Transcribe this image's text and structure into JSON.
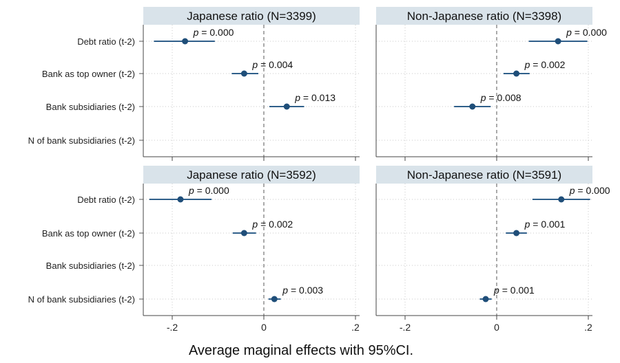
{
  "chart_data": {
    "type": "scatter",
    "description_style": "coefficient plot (dot with 95% CI bar) in 4 panels",
    "xlabel": "Average maginal effects with 95%CI.",
    "xlim": [
      -0.26,
      0.22
    ],
    "x_ticks": [
      -0.2,
      0,
      0.2
    ],
    "x_tick_labels": [
      "-.2",
      "0",
      ".2"
    ],
    "categories": [
      "Debt ratio (t-2)",
      "Bank as top owner (t-2)",
      "Bank subsidiaries (t-2)",
      "N of bank subsidiaries (t-2)"
    ],
    "colors": {
      "marker": "#1f4e79",
      "ci": "#2f5f8a",
      "header_bg": "#d9e3ea",
      "zero_line": "#555555",
      "grid": "#c8c8c8"
    },
    "panels": [
      {
        "title": "Japanese ratio (N=3399)",
        "points": [
          {
            "category": "Debt ratio (t-2)",
            "estimate": -0.172,
            "ci": [
              -0.24,
              -0.107
            ],
            "p_label": "= 0.000"
          },
          {
            "category": "Bank as top owner (t-2)",
            "estimate": -0.043,
            "ci": [
              -0.07,
              -0.012
            ],
            "p_label": "= 0.004"
          },
          {
            "category": "Bank subsidiaries (t-2)",
            "estimate": 0.05,
            "ci": [
              0.012,
              0.088
            ],
            "p_label": "= 0.013"
          }
        ]
      },
      {
        "title": "Non-Japanese ratio (N=3398)",
        "points": [
          {
            "category": "Debt ratio (t-2)",
            "estimate": 0.134,
            "ci": [
              0.07,
              0.198
            ],
            "p_label": "= 0.000"
          },
          {
            "category": "Bank as top owner (t-2)",
            "estimate": 0.043,
            "ci": [
              0.015,
              0.072
            ],
            "p_label": "= 0.002"
          },
          {
            "category": "Bank subsidiaries (t-2)",
            "estimate": -0.053,
            "ci": [
              -0.093,
              -0.013
            ],
            "p_label": "= 0.008"
          }
        ]
      },
      {
        "title": "Japanese ratio (N=3592)",
        "points": [
          {
            "category": "Debt ratio (t-2)",
            "estimate": -0.182,
            "ci": [
              -0.25,
              -0.114
            ],
            "p_label": "= 0.000"
          },
          {
            "category": "Bank as top owner (t-2)",
            "estimate": -0.043,
            "ci": [
              -0.068,
              -0.017
            ],
            "p_label": "= 0.002"
          },
          {
            "category": "N of bank subsidiaries (t-2)",
            "estimate": 0.023,
            "ci": [
              0.01,
              0.037
            ],
            "p_label": "= 0.003"
          }
        ]
      },
      {
        "title": "Non-Japanese ratio (N=3591)",
        "points": [
          {
            "category": "Debt ratio (t-2)",
            "estimate": 0.141,
            "ci": [
              0.078,
              0.204
            ],
            "p_label": "= 0.000"
          },
          {
            "category": "Bank as top owner (t-2)",
            "estimate": 0.043,
            "ci": [
              0.02,
              0.066
            ],
            "p_label": "= 0.001"
          },
          {
            "category": "N of bank subsidiaries (t-2)",
            "estimate": -0.024,
            "ci": [
              -0.037,
              -0.011
            ],
            "p_label": "= 0.001"
          }
        ]
      }
    ]
  }
}
